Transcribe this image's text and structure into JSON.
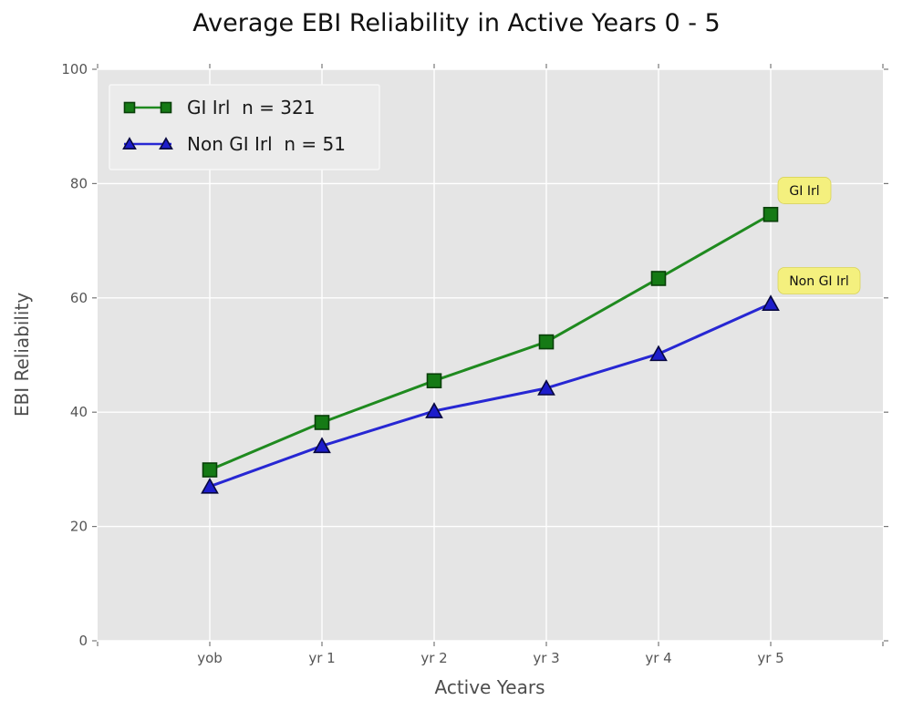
{
  "chart_data": {
    "type": "line",
    "title": "Average EBI Reliability in Active Years 0 - 5",
    "xlabel": "Active Years",
    "ylabel": "EBI Reliability",
    "categories": [
      "yob",
      "yr 1",
      "yr 2",
      "yr 3",
      "yr 4",
      "yr 5"
    ],
    "series": [
      {
        "name": "GI Irl  n = 321",
        "short_name": "GI Irl",
        "n": 321,
        "marker": "square",
        "line_color": "#1f8a1f",
        "marker_color": "#157a15",
        "marker_edge_color": "#093f09",
        "values": [
          29.9,
          38.2,
          45.5,
          52.3,
          63.4,
          74.6
        ]
      },
      {
        "name": "Non GI Irl  n = 51",
        "short_name": "Non GI Irl",
        "n": 51,
        "marker": "triangle",
        "line_color": "#2727d3",
        "marker_color": "#1d1dcb",
        "marker_edge_color": "#07073f",
        "values": [
          27.0,
          34.1,
          40.2,
          44.2,
          50.2,
          59.0
        ]
      }
    ],
    "ylim": [
      0,
      100
    ],
    "yticks": [
      0,
      20,
      40,
      60,
      80,
      100
    ],
    "grid": true,
    "legend_position": "upper-left",
    "annotations": [
      {
        "label": "GI Irl",
        "x_index": 5,
        "y": 78.8
      },
      {
        "label": "Non GI Irl",
        "x_index": 5,
        "y": 63.0
      }
    ],
    "styles": {
      "plot_bg": "#e5e5e5",
      "grid_color": "#ffffff",
      "tick_color": "#777777",
      "tick_label_color": "#555555",
      "axis_label_color": "#4d4d4d",
      "title_color": "#111111",
      "annotation_bg": "#f4f07e",
      "annotation_border": "#d9d35a",
      "annotation_text": "#111111",
      "legend_bg": "#ebebeb",
      "legend_border": "#f7f7f7",
      "legend_text": "#1a1a1a"
    }
  }
}
